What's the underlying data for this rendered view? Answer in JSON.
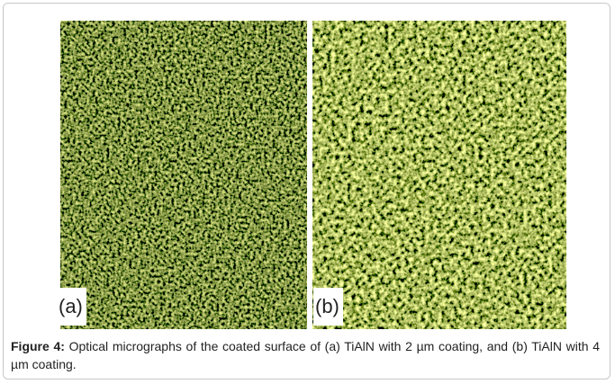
{
  "figure": {
    "panels": [
      {
        "label": "(a)"
      },
      {
        "label": "(b)"
      }
    ],
    "caption": {
      "label": "Figure 4:",
      "text": "Optical micrographs of the coated surface of (a) TiAlN with 2 µm coating, and (b) TiAlN with 4 µm coating."
    }
  }
}
